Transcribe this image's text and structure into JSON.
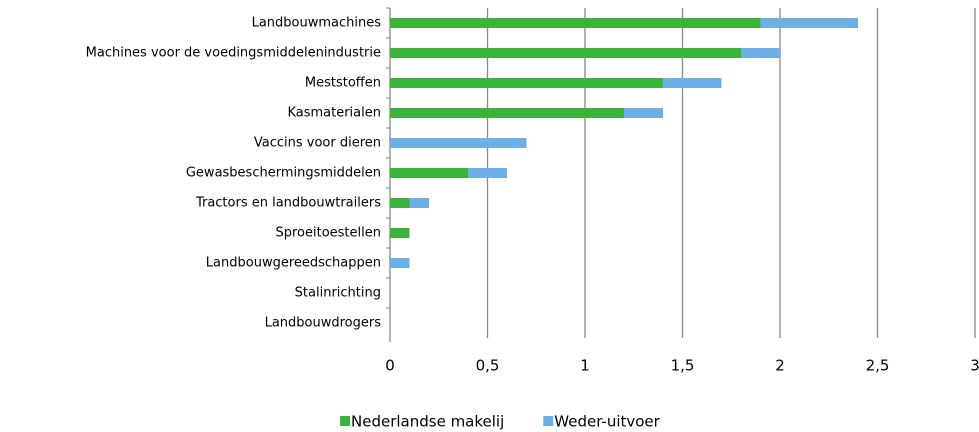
{
  "chart_data": {
    "type": "stacked-barh",
    "categories": [
      "Landbouwmachines",
      "Machines voor de voedingsmiddelenindustrie",
      "Meststoffen",
      "Kasmaterialen",
      "Vaccins voor dieren",
      "Gewasbeschermingsmiddelen",
      "Tractors en landbouwtrailers",
      "Sproeitoestellen",
      "Landbouwgereedschappen",
      "Stalinrichting",
      "Landbouwdrogers"
    ],
    "series": [
      {
        "name": "Nederlandse makelij",
        "color": "#3cb43c",
        "values": [
          1.9,
          1.8,
          1.4,
          1.2,
          0,
          0.4,
          0.1,
          0.1,
          0,
          0,
          0
        ]
      },
      {
        "name": "Weder-uitvoer",
        "color": "#6cb0e6",
        "values": [
          0.5,
          0.2,
          0.3,
          0.2,
          0.7,
          0.2,
          0.1,
          0,
          0.1,
          0,
          0
        ]
      }
    ],
    "xlim": [
      0,
      3
    ],
    "xticks": [
      0,
      {
        "value": 0.5,
        "label": "0,5"
      },
      1,
      {
        "value": 1.5,
        "label": "1,5"
      },
      2,
      {
        "value": 2.5,
        "label": "2,5"
      },
      3
    ],
    "grid": true,
    "legend": "bottom"
  }
}
